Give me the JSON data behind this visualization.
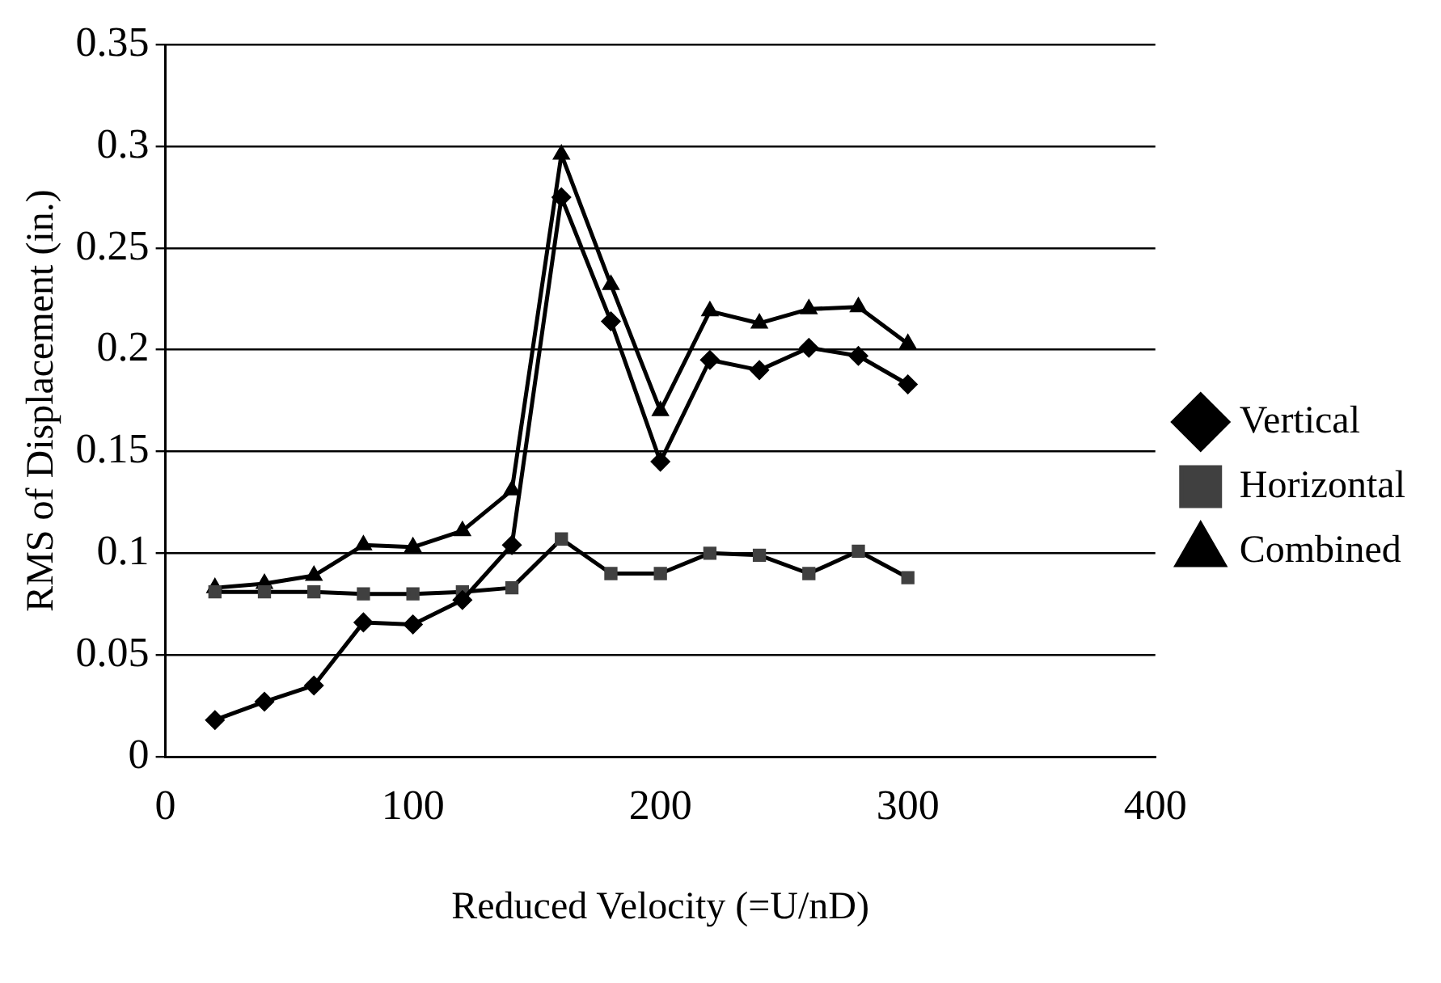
{
  "chart_data": {
    "type": "line",
    "xlabel": "Reduced Velocity (=U/nD)",
    "ylabel": "RMS of Displacement (in.)",
    "x": [
      20,
      40,
      60,
      80,
      100,
      120,
      140,
      160,
      180,
      200,
      220,
      240,
      260,
      280,
      300
    ],
    "series": [
      {
        "name": "Vertical",
        "color": "#000000",
        "marker": "diamond",
        "values": [
          0.018,
          0.027,
          0.035,
          0.066,
          0.065,
          0.077,
          0.104,
          0.275,
          0.214,
          0.145,
          0.195,
          0.19,
          0.201,
          0.197,
          0.183
        ]
      },
      {
        "name": "Horizontal",
        "color": "#404040",
        "marker": "square",
        "values": [
          0.081,
          0.081,
          0.081,
          0.08,
          0.08,
          0.081,
          0.083,
          0.107,
          0.09,
          0.09,
          0.1,
          0.099,
          0.09,
          0.101,
          0.088
        ]
      },
      {
        "name": "Combined",
        "color": "#000000",
        "marker": "triangle",
        "values": [
          0.083,
          0.085,
          0.089,
          0.104,
          0.103,
          0.111,
          0.131,
          0.296,
          0.232,
          0.17,
          0.219,
          0.213,
          0.22,
          0.221,
          0.203
        ]
      }
    ],
    "xlim": [
      0,
      400
    ],
    "xticks": [
      0,
      100,
      200,
      300,
      400
    ],
    "ylim": [
      0,
      0.35
    ],
    "yticks": [
      0,
      0.05,
      0.1,
      0.15,
      0.2,
      0.25,
      0.3,
      0.35
    ],
    "grid": "y",
    "legend": "right",
    "line_style": "solid"
  }
}
